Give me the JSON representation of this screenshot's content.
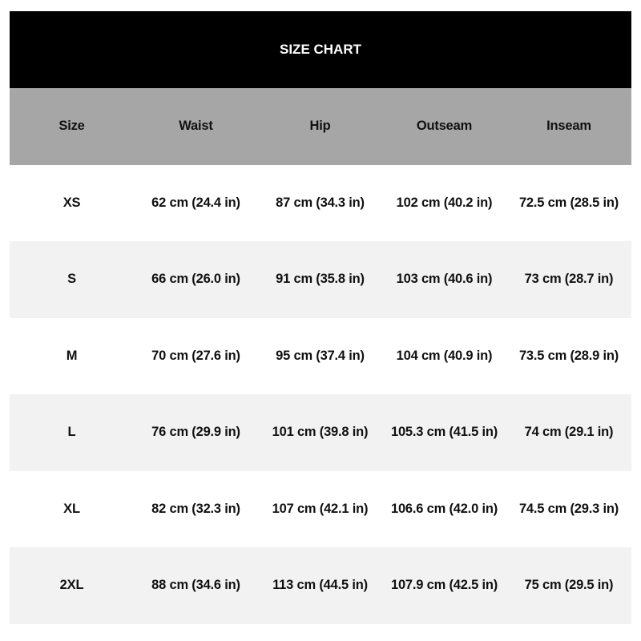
{
  "title": "SIZE CHART",
  "colors": {
    "title_bg": "#000000",
    "header_bg": "#a6a6a6",
    "alt_row_bg": "#f2f2f2"
  },
  "headers": [
    "Size",
    "Waist",
    "Hip",
    "Outseam",
    "Inseam"
  ],
  "rows": [
    [
      "XS",
      "62 cm (24.4 in)",
      "87 cm (34.3 in)",
      "102 cm (40.2 in)",
      "72.5 cm (28.5 in)"
    ],
    [
      "S",
      "66 cm (26.0 in)",
      "91 cm (35.8 in)",
      "103 cm (40.6 in)",
      "73 cm (28.7 in)"
    ],
    [
      "M",
      "70 cm (27.6 in)",
      "95 cm (37.4 in)",
      "104 cm (40.9 in)",
      "73.5 cm (28.9 in)"
    ],
    [
      "L",
      "76 cm (29.9 in)",
      "101 cm (39.8 in)",
      "105.3 cm (41.5 in)",
      "74 cm (29.1 in)"
    ],
    [
      "XL",
      "82 cm (32.3 in)",
      "107 cm (42.1 in)",
      "106.6 cm (42.0 in)",
      "74.5 cm (29.3 in)"
    ],
    [
      "2XL",
      "88 cm (34.6 in)",
      "113 cm (44.5 in)",
      "107.9 cm (42.5 in)",
      "75 cm (29.5 in)"
    ]
  ]
}
